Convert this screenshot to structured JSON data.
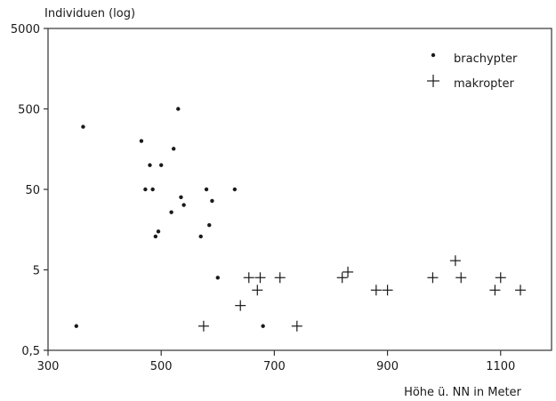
{
  "chart_data": {
    "type": "scatter",
    "title": "",
    "ylabel": "Individuen (log)",
    "xlabel": "Höhe ü. NN in Meter",
    "y_scale": "log",
    "xlim": [
      300,
      1190
    ],
    "ylim": [
      0.5,
      5000
    ],
    "x_ticks": [
      300,
      500,
      700,
      900,
      1100
    ],
    "x_tick_labels": [
      "300",
      "500",
      "700",
      "900",
      "1100"
    ],
    "y_ticks": [
      0.5,
      5,
      50,
      500,
      5000
    ],
    "y_tick_labels": [
      "0,5",
      "5",
      "50",
      "500",
      "5000"
    ],
    "grid": false,
    "legend_position": "top-right",
    "series": [
      {
        "name": "brachypter",
        "marker": "dot",
        "color": "#1a1a1a",
        "points": [
          {
            "x": 350,
            "y": 1
          },
          {
            "x": 362,
            "y": 300
          },
          {
            "x": 465,
            "y": 200
          },
          {
            "x": 472,
            "y": 50
          },
          {
            "x": 480,
            "y": 100
          },
          {
            "x": 485,
            "y": 50
          },
          {
            "x": 490,
            "y": 13
          },
          {
            "x": 495,
            "y": 15
          },
          {
            "x": 500,
            "y": 100
          },
          {
            "x": 518,
            "y": 26
          },
          {
            "x": 522,
            "y": 160
          },
          {
            "x": 530,
            "y": 500
          },
          {
            "x": 535,
            "y": 40
          },
          {
            "x": 540,
            "y": 32
          },
          {
            "x": 570,
            "y": 13
          },
          {
            "x": 580,
            "y": 50
          },
          {
            "x": 585,
            "y": 18
          },
          {
            "x": 590,
            "y": 36
          },
          {
            "x": 600,
            "y": 4
          },
          {
            "x": 630,
            "y": 50
          },
          {
            "x": 680,
            "y": 1
          }
        ]
      },
      {
        "name": "makropter",
        "marker": "plus",
        "color": "#1a1a1a",
        "points": [
          {
            "x": 575,
            "y": 1
          },
          {
            "x": 640,
            "y": 1.8
          },
          {
            "x": 655,
            "y": 4
          },
          {
            "x": 670,
            "y": 2.8
          },
          {
            "x": 675,
            "y": 4
          },
          {
            "x": 710,
            "y": 4
          },
          {
            "x": 740,
            "y": 1
          },
          {
            "x": 820,
            "y": 4
          },
          {
            "x": 830,
            "y": 4.7
          },
          {
            "x": 880,
            "y": 2.8
          },
          {
            "x": 900,
            "y": 2.8
          },
          {
            "x": 980,
            "y": 4
          },
          {
            "x": 1020,
            "y": 6.5
          },
          {
            "x": 1030,
            "y": 4
          },
          {
            "x": 1090,
            "y": 2.8
          },
          {
            "x": 1100,
            "y": 4
          },
          {
            "x": 1135,
            "y": 2.8
          }
        ]
      }
    ]
  }
}
